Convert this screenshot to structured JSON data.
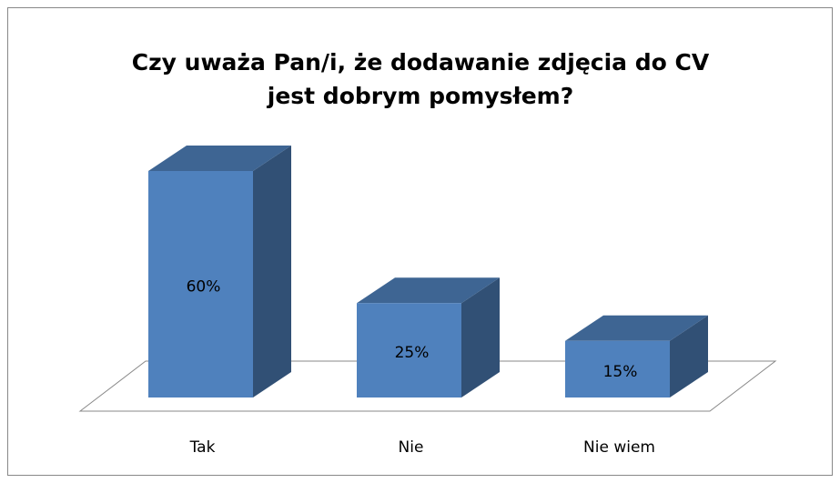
{
  "chart_data": {
    "type": "bar3d",
    "title": [
      "Czy uważa Pan/i, że dodawanie zdjęcia do CV",
      "jest dobrym pomysłem?"
    ],
    "categories": [
      "Tak",
      "Nie",
      "Nie wiem"
    ],
    "values": [
      60,
      25,
      15
    ],
    "value_labels": [
      "60%",
      "25%",
      "15%"
    ],
    "color": "#4f81bd"
  }
}
